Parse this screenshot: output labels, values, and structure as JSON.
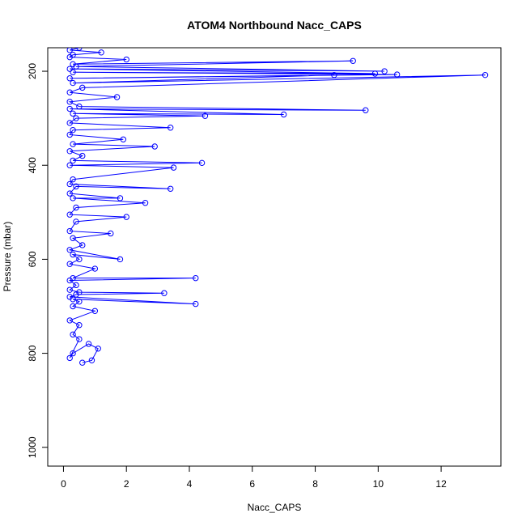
{
  "chart_data": {
    "type": "line",
    "title": "ATOM4 Northbound Nacc_CAPS",
    "xlabel": "Nacc_CAPS",
    "ylabel": "Pressure (mbar)",
    "xlim": [
      -0.5,
      13.9
    ],
    "ylim": [
      1040,
      150
    ],
    "y_axis_inverted": true,
    "x_ticks": [
      0,
      2,
      4,
      6,
      8,
      10,
      12
    ],
    "y_ticks": [
      200,
      400,
      600,
      800,
      1000
    ],
    "grid": false,
    "marker": "open-circle",
    "color": "#0000ff",
    "series": [
      {
        "points": [
          [
            0.6,
            820
          ],
          [
            0.9,
            815
          ],
          [
            1.1,
            790
          ],
          [
            0.8,
            780
          ],
          [
            0.3,
            800
          ],
          [
            0.2,
            810
          ],
          [
            0.5,
            770
          ],
          [
            0.3,
            760
          ],
          [
            0.5,
            740
          ],
          [
            0.2,
            730
          ],
          [
            1.0,
            710
          ],
          [
            0.3,
            700
          ],
          [
            0.5,
            690
          ],
          [
            0.3,
            685
          ],
          [
            4.2,
            695
          ],
          [
            0.2,
            680
          ],
          [
            0.4,
            675
          ],
          [
            3.2,
            672
          ],
          [
            0.5,
            670
          ],
          [
            0.2,
            665
          ],
          [
            0.4,
            655
          ],
          [
            0.2,
            645
          ],
          [
            4.2,
            640
          ],
          [
            0.3,
            640
          ],
          [
            1.0,
            620
          ],
          [
            0.2,
            610
          ],
          [
            0.5,
            600
          ],
          [
            0.3,
            590
          ],
          [
            1.8,
            600
          ],
          [
            0.2,
            580
          ],
          [
            0.6,
            570
          ],
          [
            0.3,
            555
          ],
          [
            1.5,
            545
          ],
          [
            0.2,
            540
          ],
          [
            0.4,
            520
          ],
          [
            2.0,
            510
          ],
          [
            0.2,
            505
          ],
          [
            0.4,
            490
          ],
          [
            2.6,
            480
          ],
          [
            0.3,
            470
          ],
          [
            1.8,
            470
          ],
          [
            0.2,
            460
          ],
          [
            0.4,
            445
          ],
          [
            3.4,
            450
          ],
          [
            0.2,
            440
          ],
          [
            0.3,
            430
          ],
          [
            3.5,
            405
          ],
          [
            0.2,
            400
          ],
          [
            4.4,
            395
          ],
          [
            0.3,
            390
          ],
          [
            0.6,
            380
          ],
          [
            0.2,
            370
          ],
          [
            2.9,
            360
          ],
          [
            0.3,
            355
          ],
          [
            1.9,
            345
          ],
          [
            0.2,
            335
          ],
          [
            0.3,
            325
          ],
          [
            3.4,
            320
          ],
          [
            0.2,
            310
          ],
          [
            0.4,
            300
          ],
          [
            4.5,
            295
          ],
          [
            0.3,
            290
          ],
          [
            7.0,
            292
          ],
          [
            0.2,
            280
          ],
          [
            9.6,
            283
          ],
          [
            0.5,
            275
          ],
          [
            0.2,
            265
          ],
          [
            1.7,
            255
          ],
          [
            0.2,
            245
          ],
          [
            0.6,
            235
          ],
          [
            13.4,
            208
          ],
          [
            0.3,
            225
          ],
          [
            8.6,
            208
          ],
          [
            0.2,
            215
          ],
          [
            10.6,
            207
          ],
          [
            0.3,
            202
          ],
          [
            9.9,
            205
          ],
          [
            0.2,
            195
          ],
          [
            10.2,
            200
          ],
          [
            0.4,
            190
          ],
          [
            9.2,
            178
          ],
          [
            0.3,
            185
          ],
          [
            2.0,
            175
          ],
          [
            0.2,
            170
          ],
          [
            0.3,
            165
          ],
          [
            1.2,
            160
          ],
          [
            0.2,
            155
          ],
          [
            0.5,
            150
          ]
        ]
      }
    ]
  }
}
